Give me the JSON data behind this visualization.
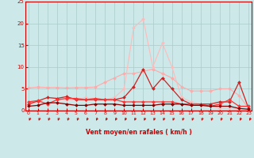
{
  "x": [
    0,
    1,
    2,
    3,
    4,
    5,
    6,
    7,
    8,
    9,
    10,
    11,
    12,
    13,
    14,
    15,
    16,
    17,
    18,
    19,
    20,
    21,
    22,
    23
  ],
  "series": [
    {
      "color": "#ffaaaa",
      "linewidth": 0.8,
      "markersize": 2.0,
      "values": [
        5.2,
        5.4,
        5.3,
        5.3,
        5.2,
        5.3,
        5.3,
        5.4,
        6.5,
        7.5,
        8.5,
        8.5,
        9.0,
        9.5,
        8.5,
        7.5,
        5.5,
        4.5,
        4.5,
        4.5,
        5.0,
        5.0,
        3.5,
        0.5
      ]
    },
    {
      "color": "#ffbbbb",
      "linewidth": 0.8,
      "markersize": 2.0,
      "values": [
        1.3,
        2.0,
        1.5,
        2.5,
        2.5,
        2.5,
        3.0,
        2.5,
        2.5,
        3.0,
        5.0,
        19.0,
        21.0,
        10.0,
        15.5,
        10.0,
        3.0,
        2.0,
        1.5,
        1.0,
        0.5,
        0.5,
        0.3,
        0.5
      ]
    },
    {
      "color": "#cc2222",
      "linewidth": 0.9,
      "markersize": 2.0,
      "values": [
        1.5,
        2.2,
        3.0,
        2.8,
        3.2,
        2.5,
        2.5,
        2.5,
        2.5,
        2.5,
        3.0,
        5.5,
        9.5,
        5.0,
        7.5,
        5.0,
        2.5,
        1.5,
        1.5,
        1.5,
        2.0,
        2.0,
        6.5,
        0.5
      ]
    },
    {
      "color": "#ff3333",
      "linewidth": 0.9,
      "markersize": 2.0,
      "values": [
        2.0,
        2.3,
        1.5,
        2.5,
        2.8,
        2.8,
        2.5,
        2.8,
        2.5,
        2.5,
        2.0,
        2.0,
        2.0,
        2.0,
        2.0,
        2.0,
        1.5,
        1.5,
        1.5,
        1.0,
        1.5,
        2.5,
        1.0,
        1.0
      ]
    },
    {
      "color": "#880000",
      "linewidth": 0.9,
      "markersize": 2.0,
      "values": [
        1.0,
        1.2,
        1.8,
        1.8,
        1.5,
        1.2,
        1.2,
        1.5,
        1.5,
        1.5,
        1.2,
        1.2,
        1.2,
        1.2,
        1.5,
        1.5,
        1.5,
        1.2,
        1.2,
        1.0,
        1.0,
        1.0,
        0.5,
        0.3
      ]
    }
  ],
  "xlim": [
    -0.3,
    23.3
  ],
  "ylim": [
    0,
    25
  ],
  "yticks": [
    0,
    5,
    10,
    15,
    20,
    25
  ],
  "xticks": [
    0,
    1,
    2,
    3,
    4,
    5,
    6,
    7,
    8,
    9,
    10,
    11,
    12,
    13,
    14,
    15,
    16,
    17,
    18,
    19,
    20,
    21,
    22,
    23
  ],
  "xlabel": "Vent moyen/en rafales ( km/h )",
  "bg_color": "#cce8e8",
  "grid_color": "#aacccc",
  "axis_color": "#cc0000",
  "tick_color": "#cc0000",
  "label_color": "#cc0000",
  "arrow_color": "#cc0000"
}
